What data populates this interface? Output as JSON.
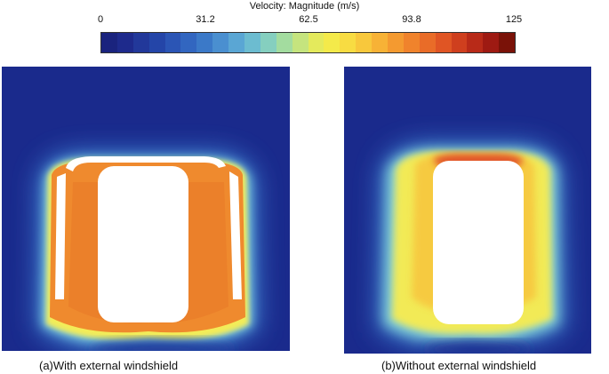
{
  "colorbar": {
    "title": "Velocity: Magnitude (m/s)",
    "ticks": [
      "0",
      "31.2",
      "62.5",
      "93.8",
      "125"
    ],
    "colors": [
      "#1a237e",
      "#1e2a8c",
      "#22389a",
      "#2445a8",
      "#2b55b5",
      "#3266c0",
      "#3b79c8",
      "#4a8fd0",
      "#5aa6d4",
      "#6cbcd0",
      "#85cfbf",
      "#a3dc9f",
      "#c5e47e",
      "#e4ea5c",
      "#f4ea4a",
      "#f8dc42",
      "#f8c83c",
      "#f7b236",
      "#f49a30",
      "#f0832c",
      "#e96c28",
      "#e05524",
      "#cf3f1e",
      "#b82a18",
      "#9e1a12",
      "#7a1208"
    ]
  },
  "captions": {
    "a": "(a)With external windshield",
    "b": "(b)Without external windshield"
  }
}
